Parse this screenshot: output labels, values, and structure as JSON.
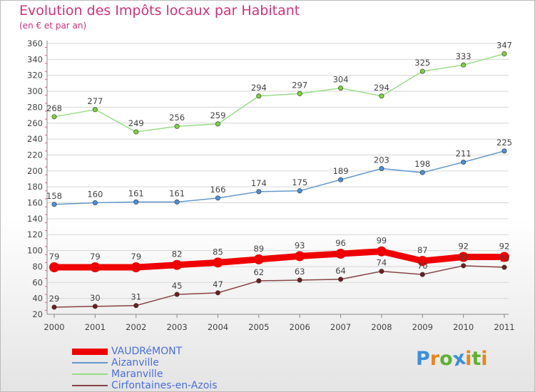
{
  "title": "Evolution des Impôts locaux par Habitant",
  "subtitle": "(en € et par an)",
  "logo_letters": [
    "P",
    "r",
    "o",
    "x",
    "i",
    "t",
    "i"
  ],
  "logo_colors": [
    "#3d8fd6",
    "#e8851e",
    "#5fb133",
    "#3d8fd6",
    "#e8851e",
    "#5fb133",
    "#e8851e"
  ],
  "chart_data": {
    "type": "line",
    "title": "Evolution des Impôts locaux par Habitant",
    "subtitle": "(en € et par an)",
    "xlabel": "",
    "ylabel": "",
    "categories": [
      "2000",
      "2001",
      "2002",
      "2003",
      "2004",
      "2005",
      "2006",
      "2007",
      "2008",
      "2009",
      "2010",
      "2011"
    ],
    "ylim": [
      20,
      360
    ],
    "yticks": [
      20,
      40,
      60,
      80,
      100,
      120,
      140,
      160,
      180,
      200,
      220,
      240,
      260,
      280,
      300,
      320,
      340,
      360
    ],
    "grid": "horizontal",
    "legend_position": "bottom-left",
    "series": [
      {
        "name": "VAUDRéMONT",
        "color": "#ee0000",
        "emphasis": true,
        "values": [
          79,
          79,
          79,
          82,
          85,
          89,
          93,
          96,
          99,
          87,
          92,
          92
        ]
      },
      {
        "name": "Aizanville",
        "color": "#6699cc",
        "marker": "#4d8fd8",
        "values": [
          158,
          160,
          161,
          161,
          166,
          174,
          175,
          189,
          203,
          198,
          211,
          225
        ]
      },
      {
        "name": "Maranville",
        "color": "#99dd88",
        "marker": "#7dd03c",
        "values": [
          268,
          277,
          249,
          256,
          259,
          294,
          297,
          304,
          294,
          325,
          333,
          347
        ]
      },
      {
        "name": "Cirfontaines-en-Azois",
        "color": "#884444",
        "marker": "#6b1f1f",
        "values": [
          29,
          30,
          31,
          45,
          47,
          62,
          63,
          64,
          74,
          70,
          81,
          79
        ]
      }
    ]
  }
}
